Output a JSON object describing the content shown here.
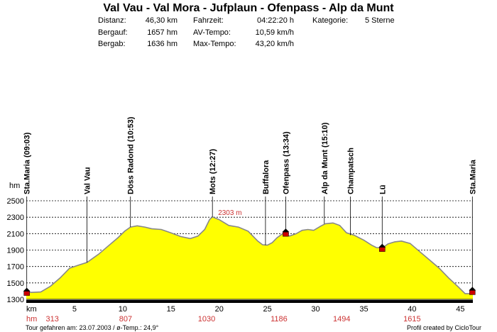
{
  "header": {
    "title": "Val Vau - Val Mora - Jufplaun - Ofenpass - Alp da Munt",
    "stats": {
      "distanz_label": "Distanz:",
      "distanz_value": "46,30 km",
      "bergauf_label": "Bergauf:",
      "bergauf_value": "1657 hm",
      "bergab_label": "Bergab:",
      "bergab_value": "1636 hm",
      "fahrzeit_label": "Fahrzeit:",
      "fahrzeit_value": "04:22:20 h",
      "avtempo_label": "AV-Tempo:",
      "avtempo_value": "10,59 km/h",
      "maxtempo_label": "Max-Tempo:",
      "maxtempo_value": "43,20 km/h",
      "kategorie_label": "Kategorie:",
      "kategorie_value": "5 Sterne"
    }
  },
  "chart_data": {
    "type": "area",
    "xlabel": "km",
    "ylabel": "hm",
    "xlim": [
      0,
      46.3
    ],
    "ylim": [
      1300,
      2500
    ],
    "x_ticks": [
      "5",
      "10",
      "15",
      "20",
      "25",
      "30",
      "35",
      "40",
      "45"
    ],
    "y_ticks": [
      "1300",
      "1500",
      "1700",
      "1900",
      "2100",
      "2300",
      "2500"
    ],
    "grid": "horizontal dashed",
    "fill_color": "#ffff00",
    "line_color": "#888888",
    "marker_color": "#cc0000",
    "max_label": "2303 m",
    "max_point": {
      "x": 19.3,
      "y": 2303
    },
    "profile": [
      [
        0,
        1390
      ],
      [
        0.5,
        1385
      ],
      [
        1.5,
        1390
      ],
      [
        2.5,
        1460
      ],
      [
        3.5,
        1560
      ],
      [
        4.5,
        1680
      ],
      [
        5.5,
        1720
      ],
      [
        6.3,
        1750
      ],
      [
        7.5,
        1850
      ],
      [
        8.5,
        1950
      ],
      [
        9.5,
        2050
      ],
      [
        10.2,
        2130
      ],
      [
        10.8,
        2180
      ],
      [
        11.5,
        2195
      ],
      [
        12.3,
        2180
      ],
      [
        13.0,
        2160
      ],
      [
        14.0,
        2150
      ],
      [
        15.0,
        2110
      ],
      [
        16.0,
        2065
      ],
      [
        17.0,
        2040
      ],
      [
        17.8,
        2070
      ],
      [
        18.5,
        2150
      ],
      [
        19.0,
        2270
      ],
      [
        19.3,
        2303
      ],
      [
        20.0,
        2270
      ],
      [
        21.0,
        2200
      ],
      [
        22.0,
        2180
      ],
      [
        23.0,
        2130
      ],
      [
        24.0,
        2010
      ],
      [
        24.5,
        1965
      ],
      [
        25.0,
        1960
      ],
      [
        25.5,
        1990
      ],
      [
        26.0,
        2050
      ],
      [
        26.7,
        2110
      ],
      [
        27.3,
        2070
      ],
      [
        28.0,
        2100
      ],
      [
        28.6,
        2140
      ],
      [
        29.2,
        2150
      ],
      [
        29.8,
        2140
      ],
      [
        30.5,
        2190
      ],
      [
        31.0,
        2220
      ],
      [
        31.8,
        2230
      ],
      [
        32.5,
        2200
      ],
      [
        33.2,
        2110
      ],
      [
        34.0,
        2080
      ],
      [
        35.0,
        2020
      ],
      [
        35.8,
        1960
      ],
      [
        36.3,
        1930
      ],
      [
        36.9,
        1925
      ],
      [
        37.5,
        1975
      ],
      [
        38.2,
        2000
      ],
      [
        38.9,
        2010
      ],
      [
        39.8,
        1980
      ],
      [
        40.8,
        1880
      ],
      [
        41.8,
        1780
      ],
      [
        42.8,
        1680
      ],
      [
        43.8,
        1560
      ],
      [
        44.8,
        1450
      ],
      [
        45.5,
        1370
      ],
      [
        46.0,
        1370
      ],
      [
        46.3,
        1400
      ]
    ],
    "waypoints": [
      {
        "label": "Sta.Maria (09:03)",
        "km": 0.05,
        "alt": 1390,
        "hut": true
      },
      {
        "label": "Val Vau",
        "km": 6.3,
        "alt": 1750,
        "hut": false
      },
      {
        "label": "Döss Radond (10:53)",
        "km": 10.8,
        "alt": 2180,
        "hut": false
      },
      {
        "label": "Mots (12:27)",
        "km": 19.3,
        "alt": 2303,
        "hut": false
      },
      {
        "label": "Buffalora",
        "km": 24.8,
        "alt": 1960,
        "hut": false
      },
      {
        "label": "Ofenpass (13:34)",
        "km": 26.9,
        "alt": 2110,
        "hut": true
      },
      {
        "label": "Alp da Munt (15:10)",
        "km": 30.9,
        "alt": 2220,
        "hut": false
      },
      {
        "label": "Champatsch",
        "km": 33.6,
        "alt": 2080,
        "hut": false
      },
      {
        "label": "Lü",
        "km": 36.9,
        "alt": 1925,
        "hut": true
      },
      {
        "label": "Sta.Maria",
        "km": 46.25,
        "alt": 1400,
        "hut": true
      }
    ],
    "hm_row_label": "hm",
    "hm_values": [
      {
        "km": 2.7,
        "value": "313"
      },
      {
        "km": 10.3,
        "value": "807"
      },
      {
        "km": 18.7,
        "value": "1030"
      },
      {
        "km": 26.2,
        "value": "1186"
      },
      {
        "km": 32.7,
        "value": "1494"
      },
      {
        "km": 40.0,
        "value": "1615"
      }
    ]
  },
  "footer": {
    "left": "Tour gefahren am: 23.07.2003  /  ø-Temp.: 24,9°",
    "right": "Profil created by CicloTour"
  }
}
